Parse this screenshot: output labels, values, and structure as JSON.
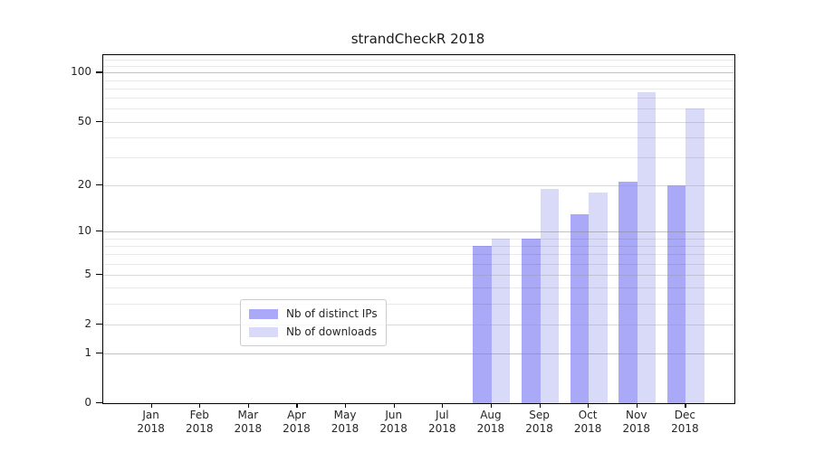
{
  "chart_data": {
    "type": "bar",
    "title": "strandCheckR 2018",
    "categories": [
      {
        "month": "Jan",
        "year": "2018"
      },
      {
        "month": "Feb",
        "year": "2018"
      },
      {
        "month": "Mar",
        "year": "2018"
      },
      {
        "month": "Apr",
        "year": "2018"
      },
      {
        "month": "May",
        "year": "2018"
      },
      {
        "month": "Jun",
        "year": "2018"
      },
      {
        "month": "Jul",
        "year": "2018"
      },
      {
        "month": "Aug",
        "year": "2018"
      },
      {
        "month": "Sep",
        "year": "2018"
      },
      {
        "month": "Oct",
        "year": "2018"
      },
      {
        "month": "Nov",
        "year": "2018"
      },
      {
        "month": "Dec",
        "year": "2018"
      }
    ],
    "series": [
      {
        "name": "Nb of distinct IPs",
        "color": "#a9a9f8",
        "values": [
          0,
          0,
          0,
          0,
          0,
          0,
          0,
          8,
          9,
          13,
          21,
          20
        ]
      },
      {
        "name": "Nb of downloads",
        "color": "#d9d9f8",
        "values": [
          0,
          0,
          0,
          0,
          0,
          0,
          0,
          9,
          19,
          18,
          76,
          60
        ]
      }
    ],
    "xlabel": "",
    "ylabel": "",
    "yscale": "log1p",
    "ylim": [
      0,
      128
    ],
    "yticks": [
      0,
      1,
      2,
      5,
      10,
      20,
      50,
      100
    ],
    "grid": {
      "major": [
        1,
        10,
        100
      ],
      "mid": [
        2,
        5,
        20,
        50
      ],
      "minor": [
        3,
        4,
        6,
        7,
        8,
        9,
        30,
        40,
        60,
        70,
        80,
        90,
        110,
        120
      ]
    },
    "legend": {
      "position": "bottom-center"
    }
  }
}
